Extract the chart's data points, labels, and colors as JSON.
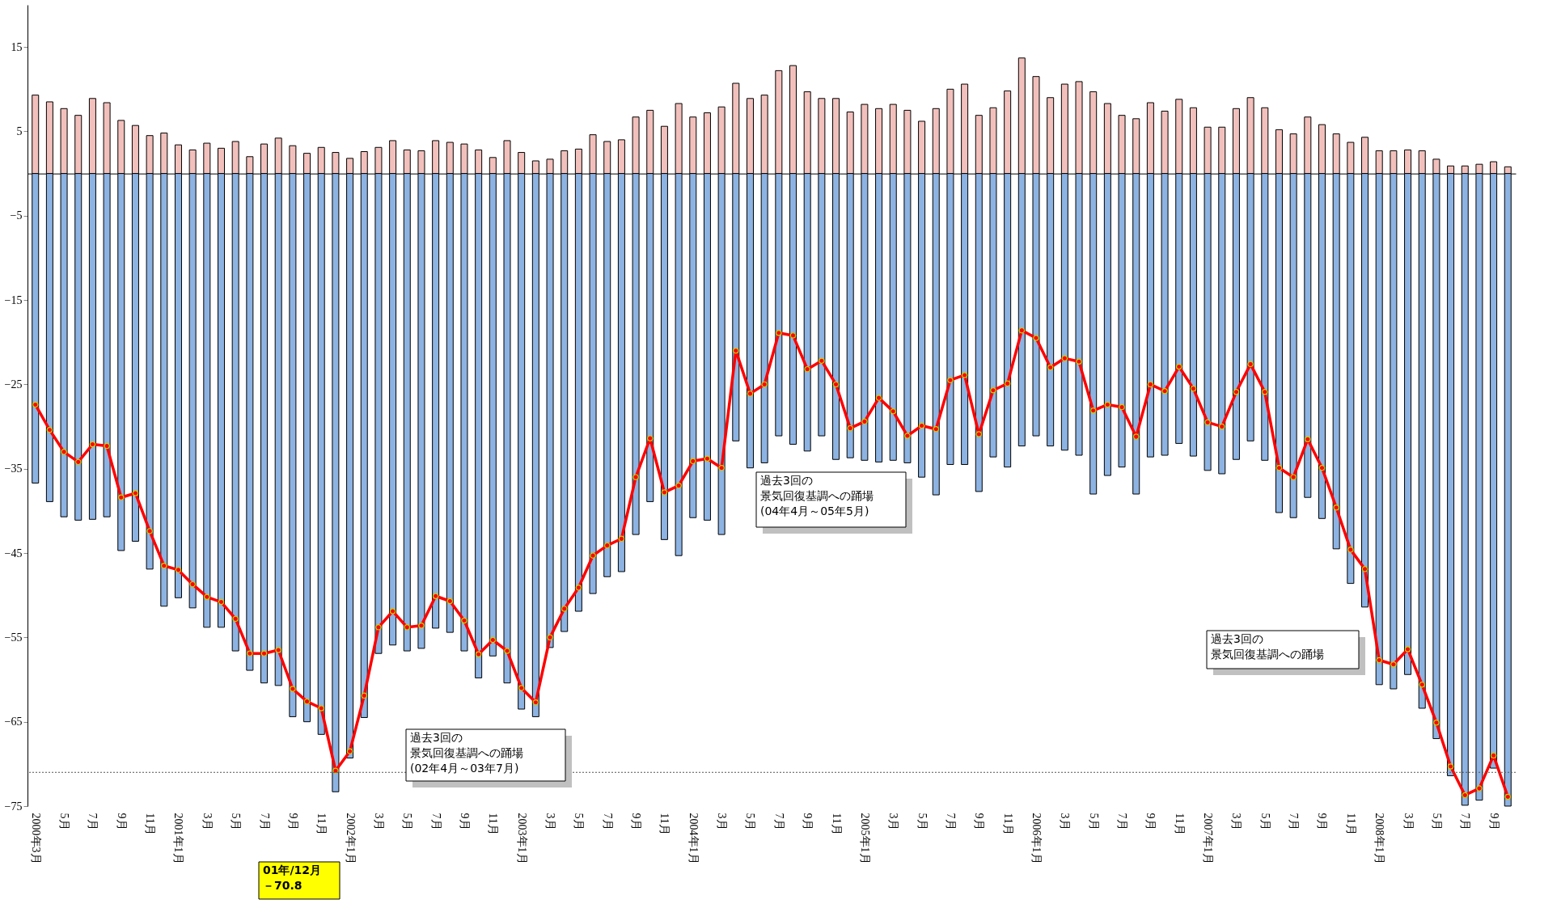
{
  "chart_data": {
    "type": "bar",
    "categories": [
      "2000年3月",
      null,
      "5月",
      null,
      "7月",
      null,
      "9月",
      null,
      "11月",
      null,
      "2001年1月",
      null,
      "3月",
      null,
      "5月",
      null,
      "7月",
      null,
      "9月",
      null,
      "11月",
      null,
      "2002年1月",
      null,
      "3月",
      null,
      "5月",
      null,
      "7月",
      null,
      "9月",
      null,
      "11月",
      null,
      "2003年1月",
      null,
      "3月",
      null,
      "5月",
      null,
      "7月",
      null,
      "9月",
      null,
      "11月",
      null,
      "2004年1月",
      null,
      "3月",
      null,
      "5月",
      null,
      "7月",
      null,
      "9月",
      null,
      "11月",
      null,
      "2005年1月",
      null,
      "3月",
      null,
      "5月",
      null,
      "7月",
      null,
      "9月",
      null,
      "11月",
      null,
      "2006年1月",
      null,
      "3月",
      null,
      "5月",
      null,
      "7月",
      null,
      "9月",
      null,
      "11月",
      null,
      "2007年1月",
      null,
      "3月",
      null,
      "5月",
      null,
      "7月",
      null,
      "9月",
      null,
      "11月",
      null,
      "2008年1月",
      null,
      "3月",
      null,
      "5月",
      null,
      "7月",
      null,
      "9月",
      null
    ],
    "series": [
      {
        "type": "bar",
        "color": "#f2c0bc",
        "values": [
          9.3,
          8.5,
          7.7,
          6.9,
          8.9,
          8.4,
          6.3,
          5.7,
          4.5,
          4.8,
          3.4,
          2.8,
          3.6,
          3.0,
          3.8,
          2.0,
          3.5,
          4.2,
          3.3,
          2.4,
          3.1,
          2.5,
          1.8,
          2.6,
          3.1,
          3.9,
          2.8,
          2.7,
          3.9,
          3.7,
          3.5,
          2.8,
          1.9,
          3.9,
          2.5,
          1.5,
          1.7,
          2.7,
          2.9,
          4.6,
          3.8,
          4.0,
          6.7,
          7.5,
          5.6,
          8.3,
          6.7,
          7.2,
          7.9,
          10.7,
          8.9,
          9.3,
          12.2,
          12.8,
          9.7,
          8.9,
          8.9,
          7.3,
          8.2,
          7.7,
          8.2,
          7.5,
          6.2,
          7.7,
          10.0,
          10.6,
          6.9,
          7.8,
          9.8,
          13.7,
          11.5,
          9.0,
          10.6,
          10.9,
          9.7,
          8.3,
          6.9,
          6.5,
          8.4,
          7.4,
          8.8,
          7.8,
          5.5,
          5.5,
          7.7,
          9.0,
          7.8,
          5.2,
          4.7,
          6.7,
          5.8,
          4.7,
          3.7,
          4.3,
          2.7,
          2.7,
          2.8,
          2.7,
          1.7,
          0.9,
          0.9,
          1.1,
          1.4,
          0.8
        ]
      },
      {
        "type": "bar",
        "color": "#8db3e2",
        "values": [
          -36.7,
          -38.9,
          -40.7,
          -41.1,
          -41.0,
          -40.7,
          -44.7,
          -43.6,
          -46.9,
          -51.3,
          -50.3,
          -51.5,
          -53.8,
          -53.8,
          -56.6,
          -58.9,
          -60.4,
          -60.7,
          -64.4,
          -65.0,
          -66.5,
          -73.3,
          -69.3,
          -64.5,
          -56.9,
          -55.9,
          -56.6,
          -56.3,
          -53.9,
          -54.4,
          -56.6,
          -59.8,
          -57.2,
          -60.4,
          -63.5,
          -64.4,
          -56.2,
          -54.3,
          -51.9,
          -49.8,
          -47.8,
          -47.2,
          -42.8,
          -38.9,
          -43.4,
          -45.3,
          -40.8,
          -41.1,
          -42.8,
          -31.7,
          -34.9,
          -34.3,
          -31.1,
          -32.1,
          -32.9,
          -31.1,
          -33.9,
          -33.7,
          -34.0,
          -34.2,
          -34.0,
          -34.3,
          -36.0,
          -38.1,
          -34.5,
          -34.5,
          -37.7,
          -33.6,
          -34.8,
          -32.3,
          -31.1,
          -32.3,
          -32.8,
          -33.4,
          -38.0,
          -35.8,
          -34.8,
          -38.0,
          -33.6,
          -33.4,
          -32.0,
          -33.5,
          -35.2,
          -35.6,
          -33.9,
          -31.7,
          -34.0,
          -40.2,
          -40.8,
          -38.4,
          -40.9,
          -44.5,
          -48.6,
          -51.4,
          -60.6,
          -61.1,
          -59.4,
          -63.4,
          -67.0,
          -71.4,
          -74.9,
          -74.3,
          -70.5,
          -75.0
        ]
      },
      {
        "type": "line",
        "color": "#ff0000",
        "values": [
          -27.4,
          -30.4,
          -33.0,
          -34.2,
          -32.1,
          -32.3,
          -38.4,
          -37.9,
          -42.4,
          -46.5,
          -47.0,
          -48.7,
          -50.2,
          -50.8,
          -52.8,
          -56.9,
          -56.9,
          -56.5,
          -61.1,
          -62.6,
          -63.4,
          -70.8,
          -68.5,
          -61.9,
          -53.8,
          -51.9,
          -53.8,
          -53.6,
          -50.1,
          -50.7,
          -53.0,
          -57.0,
          -55.3,
          -56.6,
          -61.0,
          -62.7,
          -55.0,
          -51.6,
          -49.1,
          -45.3,
          -44.1,
          -43.3,
          -36.0,
          -31.4,
          -37.8,
          -37.0,
          -34.1,
          -33.8,
          -34.9,
          -21.0,
          -26.1,
          -25.0,
          -18.9,
          -19.2,
          -23.2,
          -22.2,
          -25.0,
          -30.2,
          -29.4,
          -26.6,
          -28.2,
          -31.1,
          -29.9,
          -30.3,
          -24.5,
          -23.9,
          -30.9,
          -25.7,
          -24.9,
          -18.6,
          -19.5,
          -23.0,
          -21.9,
          -22.3,
          -28.1,
          -27.4,
          -27.7,
          -31.2,
          -25.0,
          -25.8,
          -22.9,
          -25.5,
          -29.5,
          -30.0,
          -25.9,
          -22.6,
          -25.9,
          -34.9,
          -36.0,
          -31.5,
          -34.9,
          -39.6,
          -44.6,
          -46.9,
          -57.7,
          -58.2,
          -56.4,
          -60.6,
          -65.1,
          -70.3,
          -73.7,
          -72.9,
          -69.0,
          -73.9
        ]
      }
    ],
    "ylim": [
      -75,
      20
    ],
    "yticks": [
      -75,
      -65,
      -55,
      -45,
      -35,
      -25,
      -15,
      -5,
      5,
      15
    ],
    "grid": false,
    "stacked": true,
    "marker": "circle",
    "ref_lines": [
      {
        "axis": "y",
        "value": -71,
        "line_style": "dotted"
      }
    ],
    "annotations": [
      "過去3回の景気回復基調への踊場(02年4月～03年7月)",
      "過去3回の景気回復基調への踊場(04年4月～05年5月)",
      "過去3回の景気回復基調への踊場",
      "01年/12月－70.8"
    ]
  }
}
